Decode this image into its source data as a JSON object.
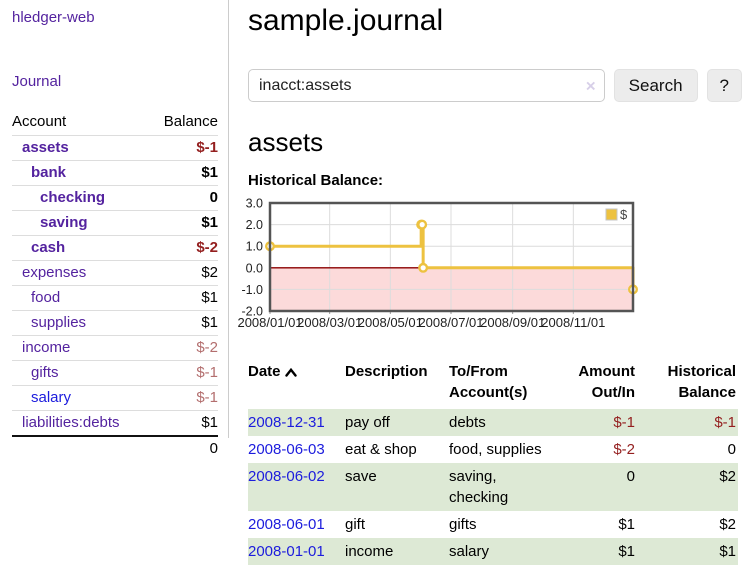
{
  "colors": {
    "link_purple": "#54239f",
    "link_blue": "#1c1cdd",
    "negative_dark": "#941f1f",
    "negative_muted": "#b36e6e",
    "row_stripe_green": "#dde9d5",
    "chart_line": "#edc240",
    "chart_negative_fill": "#fcdada",
    "chart_zero_line": "#8b0000",
    "chart_border": "#545454"
  },
  "sidebar": {
    "app_title": "hledger-web",
    "nav": {
      "journal_label": "Journal"
    },
    "accounts_table": {
      "headers": {
        "account": "Account",
        "balance": "Balance"
      },
      "rows": [
        {
          "name": "assets",
          "indent": 0,
          "bold": true,
          "balance": "$-1"
        },
        {
          "name": "bank",
          "indent": 1,
          "bold": true,
          "balance": "$1"
        },
        {
          "name": "checking",
          "indent": 2,
          "bold": true,
          "balance": "0"
        },
        {
          "name": "saving",
          "indent": 2,
          "bold": true,
          "balance": "$1"
        },
        {
          "name": "cash",
          "indent": 1,
          "bold": true,
          "balance": "$-2"
        },
        {
          "name": "expenses",
          "indent": 0,
          "bold": false,
          "balance": "$2"
        },
        {
          "name": "food",
          "indent": 1,
          "bold": false,
          "balance": "$1"
        },
        {
          "name": "supplies",
          "indent": 1,
          "bold": false,
          "balance": "$1"
        },
        {
          "name": "income",
          "indent": 0,
          "bold": false,
          "balance": "$-2"
        },
        {
          "name": "gifts",
          "indent": 1,
          "bold": false,
          "balance": "$-1"
        },
        {
          "name": "salary",
          "indent": 1,
          "bold": false,
          "balance": "$-1",
          "link_blue": true
        },
        {
          "name": "liabilities:debts",
          "indent": 0,
          "bold": false,
          "balance": "$1"
        }
      ],
      "total": "0"
    }
  },
  "main": {
    "title": "sample.journal",
    "search": {
      "value": "inacct:assets",
      "clear_icon": "×",
      "button_label": "Search",
      "help_label": "?"
    },
    "account_heading": "assets",
    "chart_label": "Historical Balance:"
  },
  "chart_data": {
    "type": "line",
    "step": true,
    "title": "Historical Balance",
    "xlim": [
      "2008-01-01",
      "2008-12-31"
    ],
    "ylim": [
      -2,
      3
    ],
    "x_ticks": [
      "2008/01/01",
      "2008/03/01",
      "2008/05/01",
      "2008/07/01",
      "2008/09/01",
      "2008/11/01"
    ],
    "y_ticks": [
      "3.0",
      "2.0",
      "1.0",
      "0.0",
      "-1.0",
      "-2.0"
    ],
    "grid": true,
    "legend": {
      "label": "$",
      "position": "top-right"
    },
    "series": [
      {
        "name": "$",
        "points": [
          [
            "2008-01-01",
            1
          ],
          [
            "2008-06-01",
            2
          ],
          [
            "2008-06-02",
            2
          ],
          [
            "2008-06-03",
            0
          ],
          [
            "2008-12-31",
            -1
          ]
        ]
      }
    ]
  },
  "transactions_table": {
    "headers": {
      "date": "Date",
      "description": "Description",
      "accounts": "To/From Account(s)",
      "amount": "Amount Out/In",
      "balance": "Historical Balance"
    },
    "rows": [
      {
        "date": "2008-12-31",
        "description": "pay off",
        "accounts": "debts",
        "amount": "$-1",
        "balance": "$-1"
      },
      {
        "date": "2008-06-03",
        "description": "eat & shop",
        "accounts": "food, supplies",
        "amount": "$-2",
        "balance": "0"
      },
      {
        "date": "2008-06-02",
        "description": "save",
        "accounts": "saving, checking",
        "amount": "0",
        "balance": "$2"
      },
      {
        "date": "2008-06-01",
        "description": "gift",
        "accounts": "gifts",
        "amount": "$1",
        "balance": "$2"
      },
      {
        "date": "2008-01-01",
        "description": "income",
        "accounts": "salary",
        "amount": "$1",
        "balance": "$1"
      }
    ]
  }
}
